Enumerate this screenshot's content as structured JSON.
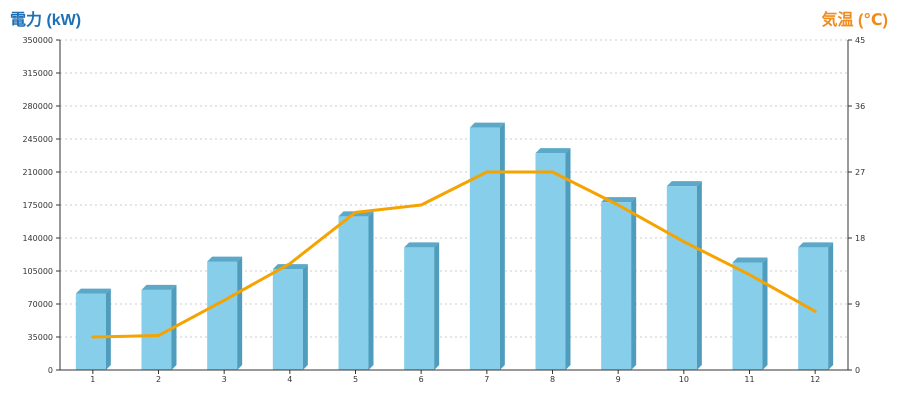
{
  "chart_data": {
    "type": "bar",
    "categories": [
      "1",
      "2",
      "3",
      "4",
      "5",
      "6",
      "7",
      "8",
      "9",
      "10",
      "11",
      "12"
    ],
    "left_axis": {
      "label": "電力 (kW)",
      "min": 0,
      "max": 350000,
      "ticks": [
        0,
        35000,
        70000,
        105000,
        140000,
        175000,
        210000,
        245000,
        280000,
        315000,
        350000
      ]
    },
    "right_axis": {
      "label": "気温 (℃)",
      "min": 0,
      "max": 45,
      "ticks": [
        0,
        9,
        18,
        27,
        36,
        45
      ]
    },
    "series": [
      {
        "type": "bar",
        "axis": "left",
        "values": [
          81000,
          85000,
          115000,
          107000,
          163000,
          130000,
          257000,
          230000,
          178000,
          195000,
          114000,
          130000
        ]
      },
      {
        "type": "line",
        "axis": "right",
        "values": [
          4.5,
          4.7,
          9.5,
          14.5,
          21.5,
          22.5,
          27,
          27,
          22.5,
          17.5,
          13,
          8
        ]
      }
    ],
    "grid": true
  },
  "colors": {
    "left_title": "#1f6fb5",
    "right_title": "#f08c1e",
    "bar_front": "#87ceeb",
    "bar_side": "#4f9cbc",
    "bar_top": "#5ba8c8",
    "line": "#f5a300",
    "grid": "#cccccc"
  }
}
